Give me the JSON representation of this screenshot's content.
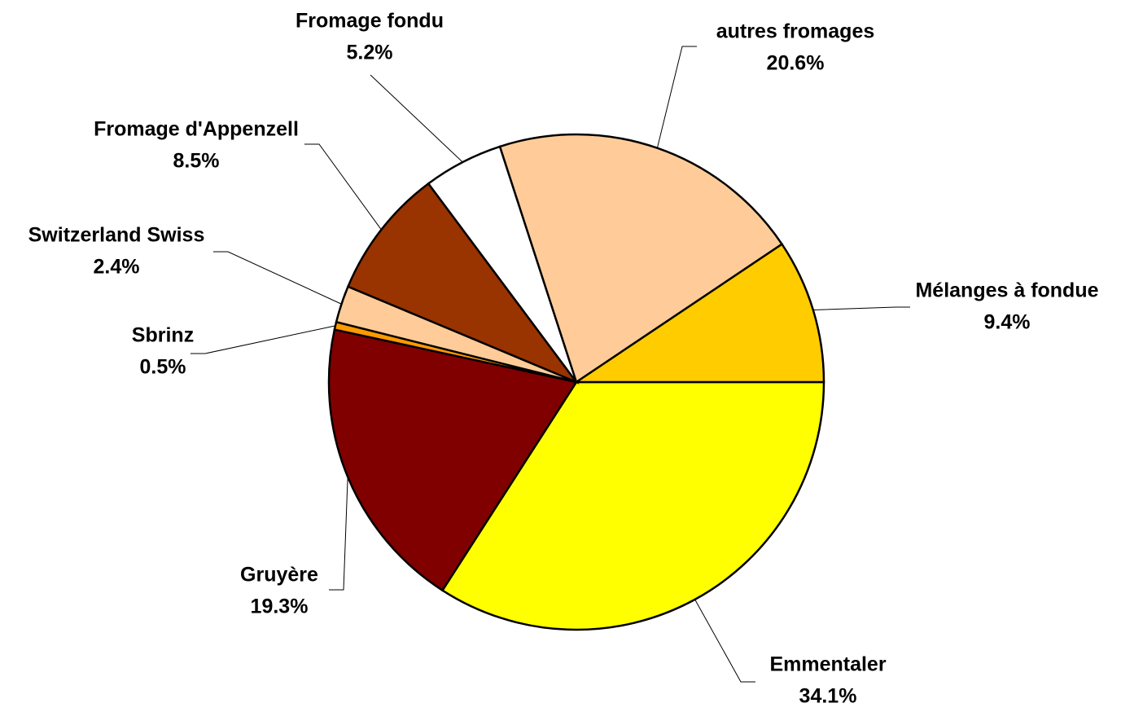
{
  "chart_data": {
    "type": "pie",
    "categories": [
      "Emmentaler",
      "Gruyère",
      "Sbrinz",
      "Switzerland Swiss",
      "Fromage d'Appenzell",
      "Fromage fondu",
      "autres fromages",
      "Mélanges à fondue"
    ],
    "values": [
      34.1,
      19.3,
      0.5,
      2.4,
      8.5,
      5.2,
      20.6,
      9.4
    ],
    "value_labels": [
      "34.1%",
      "19.3%",
      "0.5%",
      "2.4%",
      "8.5%",
      "5.2%",
      "20.6%",
      "9.4%"
    ],
    "colors": [
      "#ffff00",
      "#800000",
      "#ff9900",
      "#ffcc99",
      "#993300",
      "#ffffff",
      "#ffcc99",
      "#ffcc00"
    ]
  }
}
